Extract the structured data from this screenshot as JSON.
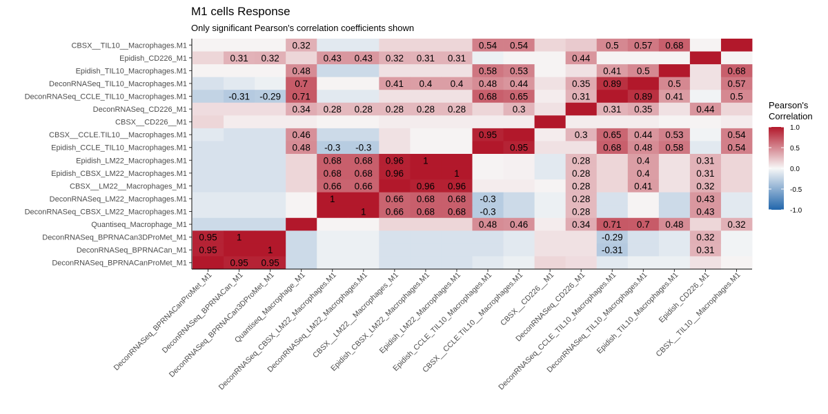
{
  "chart_data": {
    "type": "heatmap",
    "title": "M1 cells Response",
    "subtitle": "Only significant Pearson's correlation coefficients shown",
    "rows": [
      "CBSX__TIL10__Macrophages.M1",
      "Epidish_CD226_M1",
      "Epidish_TIL10_Macrophages.M1",
      "DeconRNASeq_TIL10_Macrophages.M1",
      "DeconRNASeq_CCLE_TIL10_Macrophages.M1",
      "DeconRNASeq_CD226_M1",
      "CBSX__CD226__M1",
      "CBSX__CCLE.TIL10__Macrophages.M1",
      "Epidish_CCLE_TIL10_Macrophages.M1",
      "Epidish_LM22_Macrophages.M1",
      "Epidish_CBSX_LM22_Macrophages.M1",
      "CBSX__LM22__Macrophages_M1",
      "DeconRNASeq_LM22_Macrophages.M1",
      "DeconRNASeq_CBSX_LM22_Macrophages.M1",
      "Quantiseq_Macrophage_M1",
      "DeconRNASeq_BPRNACan3DProMet_M1",
      "DeconRNASeq_BPRNACan_M1",
      "DeconRNASeq_BPRNACanProMet_M1"
    ],
    "columns": [
      "DeconRNASeq_BPRNACanProMet_M1",
      "DeconRNASeq_BPRNACan_M1",
      "DeconRNASeq_BPRNACan3DProMet_M1",
      "Quantiseq_Macrophage_M1",
      "DeconRNASeq_CBSX_LM22_Macrophages.M1",
      "DeconRNASeq_LM22_Macrophages.M1",
      "CBSX__LM22__Macrophages_M1",
      "Epidish_CBSX_LM22_Macrophages.M1",
      "Epidish_LM22_Macrophages.M1",
      "Epidish_CCLE_TIL10_Macrophages.M1",
      "CBSX__CCLE.TIL10__Macrophages.M1",
      "CBSX__CD226__M1",
      "DeconRNASeq_CD226_M1",
      "DeconRNASeq_CCLE_TIL10_Macrophages.M1",
      "DeconRNASeq_TIL10_Macrophages.M1",
      "Epidish_TIL10_Macrophages.M1",
      "Epidish_CD226_M1",
      "CBSX__TIL10__Macrophages.M1"
    ],
    "values": [
      [
        0.02,
        0.02,
        0.02,
        0.32,
        -0.1,
        -0.1,
        0.15,
        0.15,
        0.15,
        0.54,
        0.54,
        0.15,
        0.2,
        0.5,
        0.57,
        0.68,
        0.02,
        1
      ],
      [
        0.15,
        0.31,
        0.32,
        0.15,
        0.43,
        0.43,
        0.32,
        0.31,
        0.31,
        -0.05,
        0.02,
        0.02,
        0.44,
        0.02,
        0.02,
        0.02,
        1,
        0.02
      ],
      [
        0.02,
        0.02,
        0.02,
        0.48,
        -0.2,
        -0.2,
        0.1,
        0.1,
        0.1,
        0.58,
        0.53,
        0.02,
        0.1,
        0.41,
        0.5,
        1,
        0.1,
        0.68
      ],
      [
        -0.15,
        -0.1,
        -0.05,
        0.7,
        0.02,
        0.02,
        0.41,
        0.4,
        0.4,
        0.48,
        0.44,
        0.1,
        0.35,
        0.89,
        1,
        0.5,
        0.1,
        0.57
      ],
      [
        -0.25,
        -0.31,
        -0.29,
        0.71,
        -0.1,
        -0.1,
        0.1,
        0.1,
        0.1,
        0.68,
        0.65,
        0.05,
        0.31,
        1,
        0.89,
        0.41,
        -0.03,
        0.5
      ],
      [
        0.12,
        0.12,
        0.12,
        0.34,
        0.28,
        0.28,
        0.28,
        0.28,
        0.28,
        0.15,
        0.3,
        0.1,
        1,
        0.31,
        0.35,
        0.1,
        0.44,
        0.15
      ],
      [
        0.15,
        0.05,
        0.05,
        0.05,
        0.02,
        0.02,
        0.05,
        0.05,
        0.05,
        0.05,
        0.05,
        1,
        0.05,
        0.05,
        0.05,
        0.02,
        0.02,
        0.05
      ],
      [
        -0.1,
        -0.15,
        -0.15,
        0.46,
        -0.2,
        -0.2,
        0.1,
        0.02,
        0.02,
        0.95,
        1,
        0.05,
        0.3,
        0.65,
        0.44,
        0.53,
        -0.03,
        0.54
      ],
      [
        -0.15,
        -0.15,
        -0.15,
        0.48,
        -0.3,
        -0.3,
        0.1,
        0.02,
        0.02,
        1,
        0.95,
        0.1,
        0.1,
        0.68,
        0.48,
        0.58,
        -0.1,
        0.54
      ],
      [
        -0.15,
        -0.15,
        -0.15,
        0.15,
        0.68,
        0.68,
        0.96,
        1,
        1,
        0.02,
        0.03,
        -0.1,
        0.28,
        0.15,
        0.4,
        0.1,
        0.31,
        0.15
      ],
      [
        -0.15,
        -0.15,
        -0.15,
        0.15,
        0.68,
        0.68,
        0.96,
        1,
        1,
        0.02,
        0.03,
        -0.1,
        0.28,
        0.15,
        0.4,
        0.1,
        0.31,
        0.15
      ],
      [
        -0.15,
        -0.15,
        -0.15,
        0.15,
        0.66,
        0.66,
        1,
        0.96,
        0.96,
        0.05,
        0.05,
        0.02,
        0.28,
        0.15,
        0.41,
        0.1,
        0.32,
        0.15
      ],
      [
        -0.1,
        -0.1,
        -0.1,
        0.02,
        1,
        1,
        0.66,
        0.68,
        0.68,
        -0.3,
        -0.2,
        -0.05,
        0.28,
        -0.15,
        0.02,
        -0.2,
        0.43,
        -0.1
      ],
      [
        -0.1,
        -0.1,
        -0.1,
        0.02,
        1,
        1,
        0.66,
        0.68,
        0.68,
        -0.3,
        -0.2,
        -0.05,
        0.28,
        -0.15,
        0.02,
        -0.2,
        0.43,
        -0.1
      ],
      [
        -0.2,
        -0.2,
        -0.2,
        1,
        0.02,
        0.02,
        0.15,
        0.15,
        0.15,
        0.48,
        0.46,
        0.05,
        0.34,
        0.71,
        0.7,
        0.48,
        0.15,
        0.32
      ],
      [
        0.95,
        1,
        1,
        -0.2,
        -0.05,
        -0.05,
        -0.15,
        -0.15,
        -0.15,
        -0.15,
        -0.1,
        0.1,
        0.1,
        -0.29,
        -0.15,
        -0.1,
        0.32,
        -0.03
      ],
      [
        0.95,
        1,
        1,
        -0.2,
        -0.05,
        -0.05,
        -0.15,
        -0.15,
        -0.15,
        -0.15,
        -0.1,
        0.1,
        0.1,
        -0.31,
        -0.15,
        -0.1,
        0.31,
        -0.03
      ],
      [
        1,
        0.95,
        0.95,
        -0.2,
        -0.05,
        -0.05,
        -0.15,
        -0.15,
        -0.15,
        -0.1,
        -0.05,
        0.15,
        0.12,
        -0.1,
        -0.05,
        -0.05,
        0.1,
        0.02
      ]
    ],
    "labels": [
      [
        "",
        "",
        "",
        "0.32",
        "",
        "",
        "",
        "",
        "",
        "0.54",
        "0.54",
        "",
        "",
        "0.5",
        "0.57",
        "0.68",
        "",
        ""
      ],
      [
        "",
        "0.31",
        "0.32",
        "",
        "0.43",
        "0.43",
        "0.32",
        "0.31",
        "0.31",
        "",
        "",
        "",
        "0.44",
        "",
        "",
        "",
        "",
        ""
      ],
      [
        "",
        "",
        "",
        "0.48",
        "",
        "",
        "",
        "",
        "",
        "0.58",
        "0.53",
        "",
        "",
        "0.41",
        "0.5",
        "",
        "",
        "0.68"
      ],
      [
        "",
        "",
        "",
        "0.7",
        "",
        "",
        "0.41",
        "0.4",
        "0.4",
        "0.48",
        "0.44",
        "",
        "0.35",
        "0.89",
        "",
        "0.5",
        "",
        "0.57"
      ],
      [
        "",
        "-0.31",
        "-0.29",
        "0.71",
        "",
        "",
        "",
        "",
        "",
        "0.68",
        "0.65",
        "",
        "0.31",
        "",
        "0.89",
        "0.41",
        "",
        "0.5"
      ],
      [
        "",
        "",
        "",
        "0.34",
        "0.28",
        "0.28",
        "0.28",
        "0.28",
        "0.28",
        "",
        "0.3",
        "",
        "",
        "0.31",
        "0.35",
        "",
        "0.44",
        ""
      ],
      [
        "",
        "",
        "",
        "",
        "",
        "",
        "",
        "",
        "",
        "",
        "",
        "",
        "",
        "",
        "",
        "",
        "",
        ""
      ],
      [
        "",
        "",
        "",
        "0.46",
        "",
        "",
        "",
        "",
        "",
        "0.95",
        "",
        "",
        "0.3",
        "0.65",
        "0.44",
        "0.53",
        "",
        "0.54"
      ],
      [
        "",
        "",
        "",
        "0.48",
        "-0.3",
        "-0.3",
        "",
        "",
        "",
        "",
        "0.95",
        "",
        "",
        "0.68",
        "0.48",
        "0.58",
        "",
        "0.54"
      ],
      [
        "",
        "",
        "",
        "",
        "0.68",
        "0.68",
        "0.96",
        "1",
        "",
        "",
        "",
        "",
        "0.28",
        "",
        "0.4",
        "",
        "0.31",
        ""
      ],
      [
        "",
        "",
        "",
        "",
        "0.68",
        "0.68",
        "0.96",
        "",
        "1",
        "",
        "",
        "",
        "0.28",
        "",
        "0.4",
        "",
        "0.31",
        ""
      ],
      [
        "",
        "",
        "",
        "",
        "0.66",
        "0.66",
        "",
        "0.96",
        "0.96",
        "",
        "",
        "",
        "0.28",
        "",
        "0.41",
        "",
        "0.32",
        ""
      ],
      [
        "",
        "",
        "",
        "",
        "1",
        "",
        "0.66",
        "0.68",
        "0.68",
        "-0.3",
        "",
        "",
        "0.28",
        "",
        "",
        "",
        "0.43",
        ""
      ],
      [
        "",
        "",
        "",
        "",
        "",
        "1",
        "0.66",
        "0.68",
        "0.68",
        "-0.3",
        "",
        "",
        "0.28",
        "",
        "",
        "",
        "0.43",
        ""
      ],
      [
        "",
        "",
        "",
        "",
        "",
        "",
        "",
        "",
        "",
        "0.48",
        "0.46",
        "",
        "0.34",
        "0.71",
        "0.7",
        "0.48",
        "",
        "0.32"
      ],
      [
        "0.95",
        "1",
        "",
        "",
        "",
        "",
        "",
        "",
        "",
        "",
        "",
        "",
        "",
        "-0.29",
        "",
        "",
        "0.32",
        ""
      ],
      [
        "0.95",
        "",
        "1",
        "",
        "",
        "",
        "",
        "",
        "",
        "",
        "",
        "",
        "",
        "-0.31",
        "",
        "",
        "0.31",
        ""
      ],
      [
        "",
        "0.95",
        "0.95",
        "",
        "",
        "",
        "",
        "",
        "",
        "",
        "",
        "",
        "",
        "",
        "",
        "",
        "",
        ""
      ]
    ],
    "color_scale": {
      "low": "#2166ac",
      "mid": "#f7f7f7",
      "high": "#b2182b",
      "min": -1,
      "max": 1
    },
    "legend": {
      "title": [
        "Pearson's",
        "Correlation"
      ],
      "ticks": [
        "1.0",
        "0.5",
        "0.0",
        "-0.5",
        "-1.0"
      ],
      "position": "right"
    }
  }
}
